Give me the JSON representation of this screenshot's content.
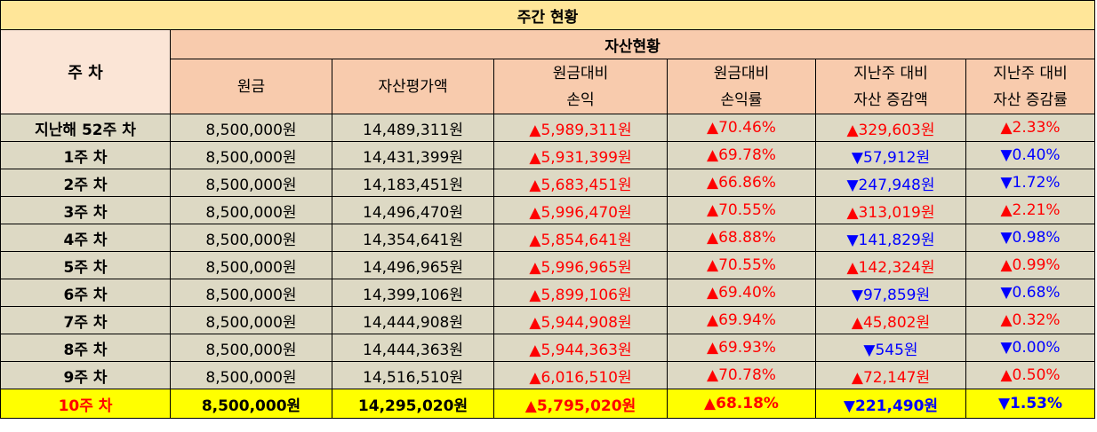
{
  "title": "주간 현황",
  "headers": {
    "week": "주 차",
    "group": "자산현황",
    "columns": [
      [
        "원금"
      ],
      [
        "자산평가액"
      ],
      [
        "원금대비",
        "손익"
      ],
      [
        "원금대비",
        "손익률"
      ],
      [
        "지난주 대비",
        "자산 증감액"
      ],
      [
        "지난주 대비",
        "자산 증감률"
      ]
    ]
  },
  "colors": {
    "up": "#ff0000",
    "down": "#0000ff",
    "highlight": "#ffff00",
    "header": "#f8cbad",
    "title": "#ffe699",
    "row": "#ddd9c4"
  },
  "rows": [
    {
      "week": "지난해 52주 차",
      "principal": "8,500,000원",
      "valuation": "14,489,311원",
      "pl": "▲5,989,311원",
      "pl_dir": "up",
      "pl_rate": "▲70.46%",
      "pl_rate_dir": "up",
      "chg": "▲329,603원",
      "chg_dir": "up",
      "chg_rate": "▲2.33%",
      "chg_rate_dir": "up"
    },
    {
      "week": "1주 차",
      "principal": "8,500,000원",
      "valuation": "14,431,399원",
      "pl": "▲5,931,399원",
      "pl_dir": "up",
      "pl_rate": "▲69.78%",
      "pl_rate_dir": "up",
      "chg": "▼57,912원",
      "chg_dir": "down",
      "chg_rate": "▼0.40%",
      "chg_rate_dir": "down"
    },
    {
      "week": "2주 차",
      "principal": "8,500,000원",
      "valuation": "14,183,451원",
      "pl": "▲5,683,451원",
      "pl_dir": "up",
      "pl_rate": "▲66.86%",
      "pl_rate_dir": "up",
      "chg": "▼247,948원",
      "chg_dir": "down",
      "chg_rate": "▼1.72%",
      "chg_rate_dir": "down"
    },
    {
      "week": "3주 차",
      "principal": "8,500,000원",
      "valuation": "14,496,470원",
      "pl": "▲5,996,470원",
      "pl_dir": "up",
      "pl_rate": "▲70.55%",
      "pl_rate_dir": "up",
      "chg": "▲313,019원",
      "chg_dir": "up",
      "chg_rate": "▲2.21%",
      "chg_rate_dir": "up"
    },
    {
      "week": "4주 차",
      "principal": "8,500,000원",
      "valuation": "14,354,641원",
      "pl": "▲5,854,641원",
      "pl_dir": "up",
      "pl_rate": "▲68.88%",
      "pl_rate_dir": "up",
      "chg": "▼141,829원",
      "chg_dir": "down",
      "chg_rate": "▼0.98%",
      "chg_rate_dir": "down"
    },
    {
      "week": "5주 차",
      "principal": "8,500,000원",
      "valuation": "14,496,965원",
      "pl": "▲5,996,965원",
      "pl_dir": "up",
      "pl_rate": "▲70.55%",
      "pl_rate_dir": "up",
      "chg": "▲142,324원",
      "chg_dir": "up",
      "chg_rate": "▲0.99%",
      "chg_rate_dir": "up"
    },
    {
      "week": "6주 차",
      "principal": "8,500,000원",
      "valuation": "14,399,106원",
      "pl": "▲5,899,106원",
      "pl_dir": "up",
      "pl_rate": "▲69.40%",
      "pl_rate_dir": "up",
      "chg": "▼97,859원",
      "chg_dir": "down",
      "chg_rate": "▼0.68%",
      "chg_rate_dir": "down"
    },
    {
      "week": "7주 차",
      "principal": "8,500,000원",
      "valuation": "14,444,908원",
      "pl": "▲5,944,908원",
      "pl_dir": "up",
      "pl_rate": "▲69.94%",
      "pl_rate_dir": "up",
      "chg": "▲45,802원",
      "chg_dir": "up",
      "chg_rate": "▲0.32%",
      "chg_rate_dir": "up"
    },
    {
      "week": "8주 차",
      "principal": "8,500,000원",
      "valuation": "14,444,363원",
      "pl": "▲5,944,363원",
      "pl_dir": "up",
      "pl_rate": "▲69.93%",
      "pl_rate_dir": "up",
      "chg": "▼545원",
      "chg_dir": "down",
      "chg_rate": "▼0.00%",
      "chg_rate_dir": "down"
    },
    {
      "week": "9주 차",
      "principal": "8,500,000원",
      "valuation": "14,516,510원",
      "pl": "▲6,016,510원",
      "pl_dir": "up",
      "pl_rate": "▲70.78%",
      "pl_rate_dir": "up",
      "chg": "▲72,147원",
      "chg_dir": "up",
      "chg_rate": "▲0.50%",
      "chg_rate_dir": "up"
    },
    {
      "week": "10주 차",
      "principal": "8,500,000원",
      "valuation": "14,295,020원",
      "pl": "▲5,795,020원",
      "pl_dir": "up",
      "pl_rate": "▲68.18%",
      "pl_rate_dir": "up",
      "chg": "▼221,490원",
      "chg_dir": "down",
      "chg_rate": "▼1.53%",
      "chg_rate_dir": "down"
    }
  ]
}
